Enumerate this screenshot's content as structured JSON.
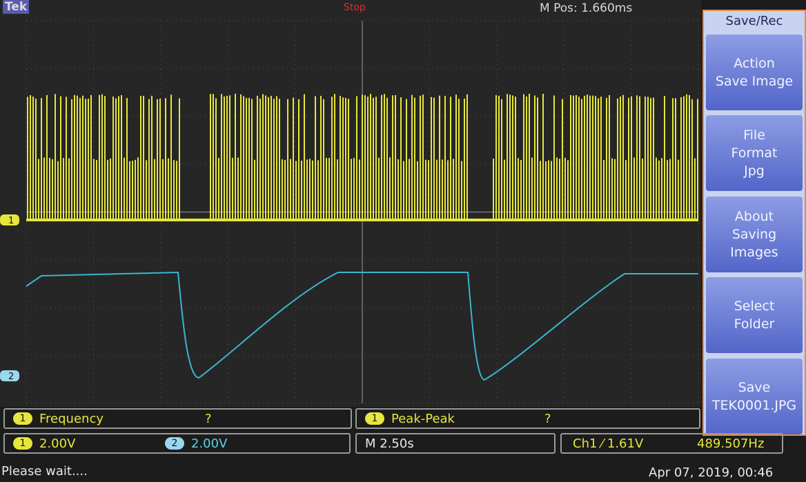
{
  "header": {
    "brand": "Tek",
    "trigger_status": "Stop",
    "position": "M Pos: 1.660ms"
  },
  "channel_markers": [
    "1",
    "2"
  ],
  "menu": {
    "title": "Save/Rec",
    "buttons": [
      [
        "Action",
        "Save Image"
      ],
      [
        "File",
        "Format",
        "Jpg"
      ],
      [
        "About",
        "Saving",
        "Images"
      ],
      [
        "Select",
        "Folder"
      ],
      [
        "Save",
        "TEK0001.JPG"
      ]
    ]
  },
  "measurements": [
    {
      "channel": "1",
      "name": "Frequency",
      "value": "?"
    },
    {
      "channel": "1",
      "name": "Peak-Peak",
      "value": "?"
    }
  ],
  "status": {
    "ch1_scale": {
      "channel": "1",
      "value": "2.00V"
    },
    "ch2_scale": {
      "channel": "2",
      "value": "2.00V"
    },
    "timebase": "M 2.50s",
    "trigger": "Ch1 ⁄ 1.61V",
    "frequency": "489.507Hz",
    "message": "Please wait....",
    "datetime": "Apr 07, 2019, 00:46"
  }
}
